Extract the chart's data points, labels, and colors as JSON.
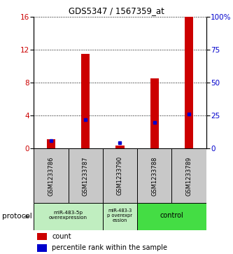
{
  "title": "GDS5347 / 1567359_at",
  "samples": [
    "GSM1233786",
    "GSM1233787",
    "GSM1233790",
    "GSM1233788",
    "GSM1233789"
  ],
  "red_values": [
    1.1,
    11.5,
    0.4,
    8.5,
    16.0
  ],
  "blue_values_pct": [
    6.0,
    22.0,
    4.5,
    20.0,
    26.0
  ],
  "ylim_left": [
    0,
    16
  ],
  "ylim_right": [
    0,
    100
  ],
  "yticks_left": [
    0,
    4,
    8,
    12,
    16
  ],
  "yticks_right": [
    0,
    25,
    50,
    75,
    100
  ],
  "ytick_labels_right": [
    "0",
    "25",
    "50",
    "75",
    "100%"
  ],
  "bar_color_red": "#CC0000",
  "bar_color_blue": "#0000CC",
  "bg_color": "#FFFFFF",
  "label_color_left": "#CC0000",
  "label_color_right": "#0000CC",
  "legend_count": "count",
  "legend_pct": "percentile rank within the sample",
  "group_light_green": "#C0EEC0",
  "group_mid_green": "#44DD44",
  "sample_bg": "#C8C8C8",
  "protocol_label": "protocol"
}
